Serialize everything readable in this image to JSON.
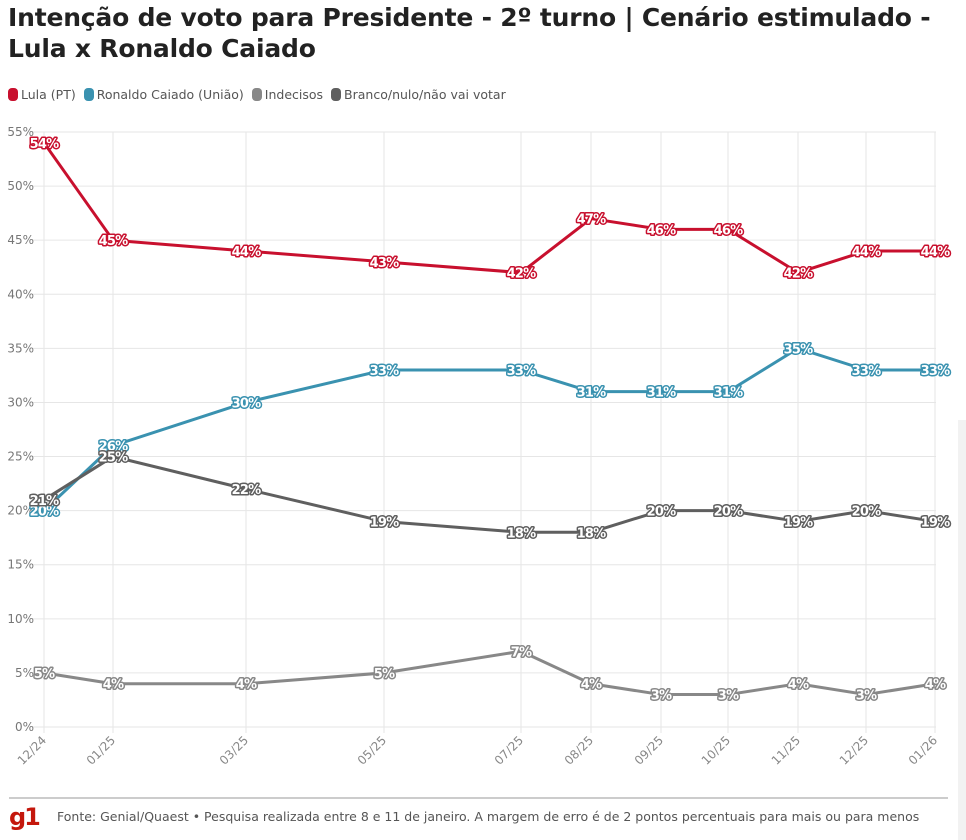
{
  "page": {
    "title": "Intenção de voto para Presidente - 2º turno | Cenário estimulado - Lula x Ronaldo Caiado",
    "logo": "g1",
    "source": "Fonte: Genial/Quaest • Pesquisa realizada entre 8 e 11 de janeiro. A margem de erro é de 2 pontos percentuais para mais ou para menos"
  },
  "chart_data": {
    "type": "line",
    "title": "Intenção de voto para Presidente - 2º turno | Cenário estimulado - Lula x Ronaldo Caiado",
    "xlabel": "",
    "ylabel": "",
    "x": [
      "12/24",
      "01/25",
      "03/25",
      "05/25",
      "07/25",
      "08/25",
      "09/25",
      "10/25",
      "11/25",
      "12/25",
      "01/26"
    ],
    "yticks": [
      "0%",
      "5%",
      "10%",
      "15%",
      "20%",
      "25%",
      "30%",
      "35%",
      "40%",
      "45%",
      "50%",
      "55%"
    ],
    "ylim": [
      0,
      55
    ],
    "grid": true,
    "legend_position": "top-left",
    "series": [
      {
        "name": "Lula (PT)",
        "color": "#c8102e",
        "values": [
          54,
          45,
          44,
          43,
          42,
          47,
          46,
          46,
          42,
          44,
          44
        ]
      },
      {
        "name": "Ronaldo Caiado (União)",
        "color": "#3a92b0",
        "values": [
          20,
          26,
          30,
          33,
          33,
          31,
          31,
          31,
          35,
          33,
          33
        ]
      },
      {
        "name": "Indecisos",
        "color": "#888888",
        "values": [
          5,
          4,
          4,
          5,
          7,
          4,
          3,
          3,
          4,
          3,
          4
        ]
      },
      {
        "name": "Branco/nulo/não vai votar",
        "color": "#5f5f5f",
        "values": [
          21,
          25,
          22,
          19,
          18,
          18,
          20,
          20,
          19,
          20,
          19
        ]
      }
    ]
  }
}
